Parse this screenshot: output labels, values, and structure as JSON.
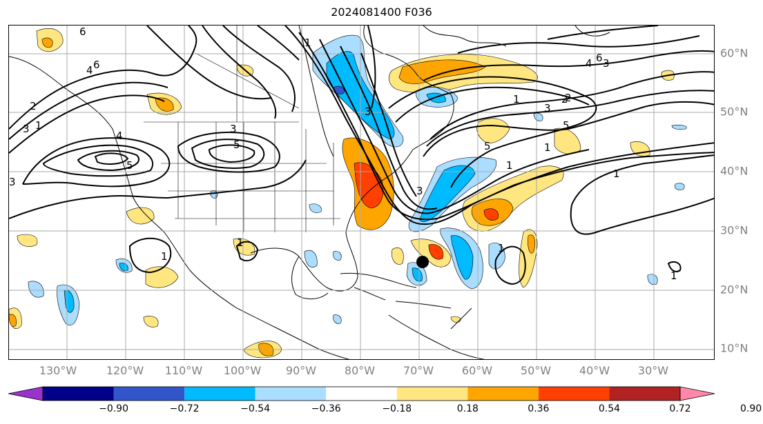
{
  "title": "2024081400 F036",
  "lon_labels": [
    "130°W",
    "120°W",
    "110°W",
    "100°W",
    "90°W",
    "80°W",
    "70°W",
    "60°W",
    "50°W",
    "40°W",
    "30°W"
  ],
  "lat_labels": [
    "60°N",
    "50°N",
    "40°N",
    "30°N",
    "20°N",
    "10°N"
  ],
  "colorbar": {
    "colors": [
      "#9933cc",
      "#000088",
      "#3355cc",
      "#00bbff",
      "#aaddff",
      "#ffffff",
      "#ffe680",
      "#ffa500",
      "#ff4000",
      "#b22222",
      "#ff88aa"
    ],
    "ticks": [
      "−0.90",
      "−0.72",
      "−0.54",
      "−0.36",
      "−0.18",
      "0.18",
      "0.36",
      "0.54",
      "0.72",
      "0.90"
    ]
  },
  "contour_labels": [
    "6",
    "1",
    "4",
    "6",
    "2",
    "1",
    "3",
    "4",
    "5",
    "3",
    "5",
    "3",
    "3",
    "1",
    "2",
    "1",
    "3",
    "2",
    "5",
    "6",
    "4",
    "1",
    "1",
    "1",
    "3",
    "1",
    "1",
    "3",
    "5",
    "1"
  ],
  "marker": {
    "name": "storm-center",
    "color": "#000000"
  }
}
